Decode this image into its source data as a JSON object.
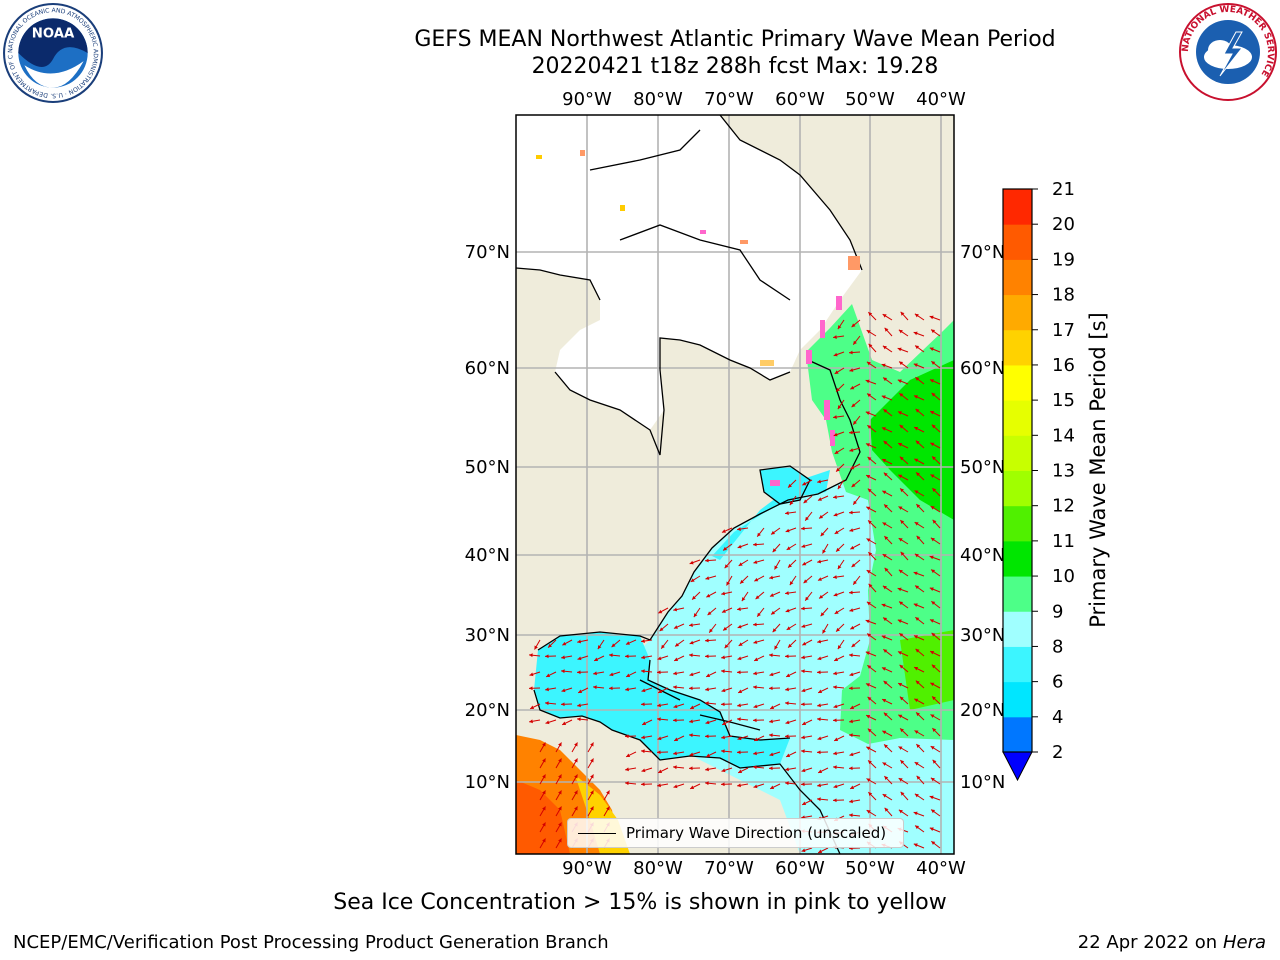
{
  "header": {
    "title_line1": "GEFS MEAN Northwest Atlantic Primary Wave Mean Period",
    "title_line2": "20220421 t18z 288h fcst   Max: 19.28"
  },
  "logos": {
    "left_icon": "noaa-logo-icon",
    "left_text": "NOAA",
    "left_ring_text": "NATIONAL OCEANIC AND ATMOSPHERIC ADMINISTRATION · U.S. DEPARTMENT OF COMMERCE",
    "right_icon": "nws-logo-icon",
    "right_ring_text": "NATIONAL WEATHER SERVICE"
  },
  "map": {
    "lon_labels": [
      "90°W",
      "80°W",
      "70°W",
      "60°W",
      "50°W",
      "40°W"
    ],
    "lat_labels": [
      "70°N",
      "60°N",
      "50°N",
      "40°N",
      "30°N",
      "20°N",
      "10°N"
    ],
    "lon_values": [
      -90,
      -80,
      -70,
      -60,
      -50,
      -40
    ],
    "lat_values": [
      70,
      60,
      50,
      40,
      30,
      20,
      10
    ],
    "land_color": "#efecdb",
    "ice_color": "#ffffff",
    "arrow_color": "#d40000",
    "legend_label": "Primary Wave Direction (unscaled)"
  },
  "colorbar": {
    "title": "Primary Wave Mean Period [s]",
    "ticks": [
      "2",
      "4",
      "6",
      "8",
      "9",
      "10",
      "11",
      "12",
      "13",
      "14",
      "15",
      "16",
      "17",
      "18",
      "19",
      "20",
      "21"
    ],
    "tick_values": [
      2,
      4,
      6,
      8,
      9,
      10,
      11,
      12,
      13,
      14,
      15,
      16,
      17,
      18,
      19,
      20,
      21
    ],
    "colors": [
      "#0077ff",
      "#00e6ff",
      "#3cf5ff",
      "#a0ffff",
      "#4dff88",
      "#00e600",
      "#50f000",
      "#a0ff00",
      "#c8ff00",
      "#e6ff00",
      "#ffff00",
      "#ffd200",
      "#ffaa00",
      "#ff8200",
      "#ff5a00",
      "#ff2800"
    ],
    "underflow_color": "#0000ff",
    "top_color": "#ff0000"
  },
  "subtitle": "Sea Ice Concentration > 15% is shown in pink to yellow",
  "footer": {
    "left": "NCEP/EMC/Verification Post Processing Product Generation Branch",
    "right_prefix": "22 Apr 2022 on ",
    "right_host": "Hera"
  }
}
